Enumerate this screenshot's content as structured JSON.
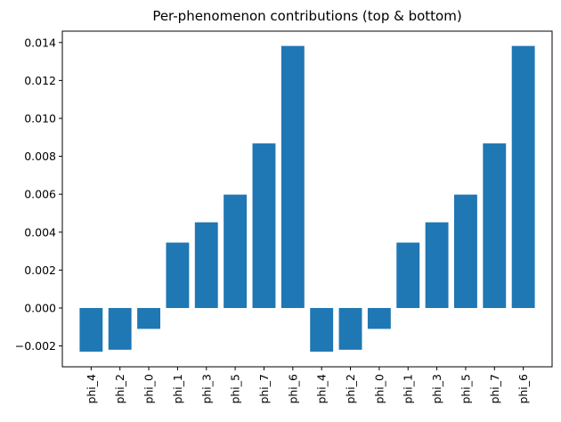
{
  "chart_data": {
    "type": "bar",
    "title": "Per-phenomenon contributions (top & bottom)",
    "xlabel": "",
    "ylabel": "",
    "categories": [
      "phi_4",
      "phi_2",
      "phi_0",
      "phi_1",
      "phi_3",
      "phi_5",
      "phi_7",
      "phi_6",
      "phi_4",
      "phi_2",
      "phi_0",
      "phi_1",
      "phi_3",
      "phi_5",
      "phi_7",
      "phi_6"
    ],
    "values": [
      -0.0023,
      -0.0022,
      -0.0011,
      0.00345,
      0.00452,
      0.00598,
      0.00868,
      0.01382,
      -0.0023,
      -0.0022,
      -0.0011,
      0.00345,
      0.00452,
      0.00598,
      0.00868,
      0.01382
    ],
    "ylim": [
      -0.0031,
      0.0146
    ],
    "yticks": [
      -0.002,
      0.0,
      0.002,
      0.004,
      0.006,
      0.008,
      0.01,
      0.012,
      0.014
    ],
    "ytick_labels": [
      "−0.002",
      "0.000",
      "0.002",
      "0.004",
      "0.006",
      "0.008",
      "0.010",
      "0.012",
      "0.014"
    ],
    "bar_color": "#1f77b4",
    "grid": false,
    "legend": "none"
  }
}
